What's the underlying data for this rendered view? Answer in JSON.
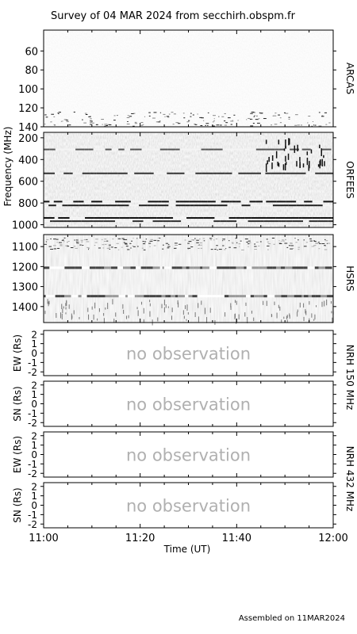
{
  "title": "Survey of 04 MAR 2024 from secchirh.obspm.fr",
  "footer": "Assembled on 11MAR2024",
  "x_axis": {
    "label": "Time (UT)",
    "ticks": [
      "11:00",
      "11:20",
      "11:40",
      "12:00"
    ],
    "tick_values_min": [
      0,
      20,
      40,
      60
    ]
  },
  "spectrogram_ylabel": "Frequency (MHz)",
  "no_observation_text": "no observation",
  "nrh_groups": [
    "NRH 150 MHz",
    "NRH 432 MHz"
  ],
  "chart_data": [
    {
      "type": "heatmap",
      "name": "ARCAS",
      "ylim": [
        140,
        38
      ],
      "yticks": [
        60,
        80,
        100,
        120,
        140
      ],
      "xlim": [
        "11:00",
        "12:00"
      ]
    },
    {
      "type": "heatmap",
      "name": "ORFEES",
      "ylim": [
        1025,
        150
      ],
      "yticks": [
        200,
        400,
        600,
        800,
        1000
      ],
      "xlim": [
        "11:00",
        "12:00"
      ]
    },
    {
      "type": "heatmap",
      "name": "HSRS",
      "ylim": [
        1480,
        1040
      ],
      "yticks": [
        1100,
        1200,
        1300,
        1400
      ],
      "xlim": [
        "11:00",
        "12:00"
      ]
    },
    {
      "type": "line",
      "ylabel": "EW (Rs)",
      "yticks": [
        2,
        1,
        0,
        -1,
        -2
      ],
      "ylim": [
        -2.4,
        2.4
      ],
      "xlim": [
        "11:00",
        "12:00"
      ],
      "series": []
    },
    {
      "type": "line",
      "ylabel": "SN (Rs)",
      "yticks": [
        2,
        1,
        0,
        -1,
        -2
      ],
      "ylim": [
        -2.4,
        2.4
      ],
      "xlim": [
        "11:00",
        "12:00"
      ],
      "series": []
    },
    {
      "type": "line",
      "ylabel": "EW (Rs)",
      "yticks": [
        2,
        1,
        0,
        -1,
        -2
      ],
      "ylim": [
        -2.4,
        2.4
      ],
      "xlim": [
        "11:00",
        "12:00"
      ],
      "series": []
    },
    {
      "type": "line",
      "ylabel": "SN (Rs)",
      "yticks": [
        2,
        1,
        0,
        -1,
        -2
      ],
      "ylim": [
        -2.4,
        2.4
      ],
      "xlim": [
        "11:00",
        "12:00"
      ],
      "series": []
    }
  ]
}
